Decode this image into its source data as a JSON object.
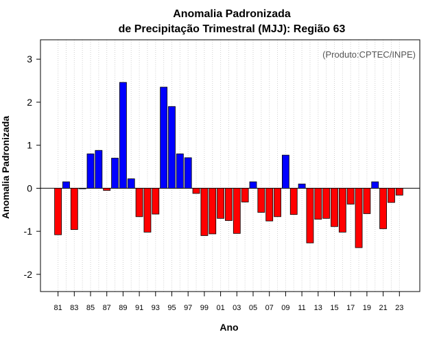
{
  "chart_data": {
    "type": "bar",
    "title": "Anomalia Padronizada",
    "subtitle": "de Precipitação Trimestral (MJJ): Região 63",
    "credit": "(Produto:CPTEC/INPE)",
    "xlabel": "Ano",
    "ylabel": "Anomalia Padronizada",
    "ylim": [
      -2.4,
      3.45
    ],
    "yticks": [
      -2,
      -1,
      0,
      1,
      2,
      3
    ],
    "grid": "vertical-dotted",
    "categories": [
      "81",
      "82",
      "83",
      "84",
      "85",
      "86",
      "87",
      "88",
      "89",
      "90",
      "91",
      "92",
      "93",
      "94",
      "95",
      "96",
      "97",
      "98",
      "99",
      "00",
      "01",
      "02",
      "03",
      "04",
      "05",
      "06",
      "07",
      "08",
      "09",
      "10",
      "11",
      "12",
      "13",
      "14",
      "15",
      "16",
      "17",
      "18",
      "19",
      "20",
      "21",
      "22",
      "23"
    ],
    "xtick_labels": [
      "81",
      "83",
      "85",
      "87",
      "89",
      "91",
      "93",
      "95",
      "97",
      "99",
      "01",
      "03",
      "05",
      "07",
      "09",
      "11",
      "13",
      "15",
      "17",
      "19",
      "21",
      "23"
    ],
    "values": [
      -1.08,
      0.15,
      -0.96,
      0.0,
      0.8,
      0.88,
      -0.05,
      0.7,
      2.46,
      0.22,
      -0.66,
      -1.02,
      -0.6,
      2.35,
      1.9,
      0.8,
      0.71,
      -0.12,
      -1.1,
      -1.06,
      -0.7,
      -0.75,
      -1.05,
      -0.32,
      0.15,
      -0.56,
      -0.76,
      -0.66,
      0.77,
      -0.61,
      0.1,
      -1.27,
      -0.72,
      -0.7,
      -0.89,
      -1.02,
      -0.37,
      -1.38,
      -0.59,
      0.15,
      -0.94,
      -0.33,
      -0.16
    ],
    "colors": {
      "positive": "#0000ff",
      "negative": "#ff0000",
      "outline": "#000000"
    }
  }
}
